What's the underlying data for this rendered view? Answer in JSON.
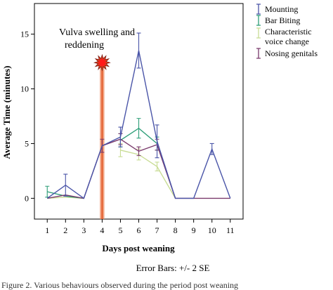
{
  "chart_data": {
    "type": "line",
    "title": "",
    "xlabel": "Days post weaning",
    "ylabel": "Average Time (minutes)",
    "x": [
      1,
      2,
      3,
      4,
      5,
      6,
      7,
      8,
      9,
      10,
      11
    ],
    "xlim": [
      0.3,
      11.7
    ],
    "ylim": [
      -1.9,
      17.8
    ],
    "yticks": [
      0,
      5,
      10,
      15
    ],
    "grid": false,
    "legend_position": "right-outside-top",
    "series": [
      {
        "name": "Mounting",
        "color": "#4a55a8",
        "values": [
          0,
          1.2,
          0,
          4.8,
          5.6,
          13.5,
          5.2,
          0,
          0,
          4.5,
          0
        ],
        "error": [
          0,
          1.0,
          0,
          0,
          0.9,
          1.6,
          1.5,
          0,
          0,
          0.5,
          0
        ]
      },
      {
        "name": "Bar Biting",
        "color": "#2e9e78",
        "values": [
          0.6,
          0.2,
          0,
          null,
          5.3,
          6.4,
          5.0,
          null,
          null,
          null,
          null
        ],
        "error": [
          0.5,
          0,
          0,
          null,
          0.6,
          0.9,
          0.6,
          null,
          null,
          null,
          null
        ]
      },
      {
        "name": "Characteristic voice change",
        "color": "#c8dc94",
        "values": [
          0,
          0.1,
          0,
          null,
          4.4,
          4.0,
          2.9,
          0,
          null,
          null,
          null
        ],
        "error": [
          0,
          0,
          0,
          null,
          0.6,
          0.5,
          0.4,
          0,
          null,
          null,
          null
        ]
      },
      {
        "name": "Nosing genitals",
        "color": "#7a3a6c",
        "values": [
          0,
          0.3,
          0,
          4.8,
          5.4,
          4.3,
          4.9,
          0,
          0,
          0,
          0
        ],
        "error": [
          0,
          0,
          0,
          0.6,
          0.5,
          0.4,
          0.5,
          0,
          0,
          0,
          0
        ]
      }
    ],
    "annotation": {
      "text_line1": "Vulva swelling and",
      "text_line2": "reddening",
      "x": 4
    },
    "footnote": "Error Bars: +/- 2 SE"
  },
  "legend_labels": {
    "s0": "Mounting",
    "s1": "Bar Biting",
    "s2a": "Characteristic",
    "s2b": "voice change",
    "s3": "Nosing genitals"
  },
  "caption_fragment": "Figure 2. Various behaviours observed during the period post weaning"
}
